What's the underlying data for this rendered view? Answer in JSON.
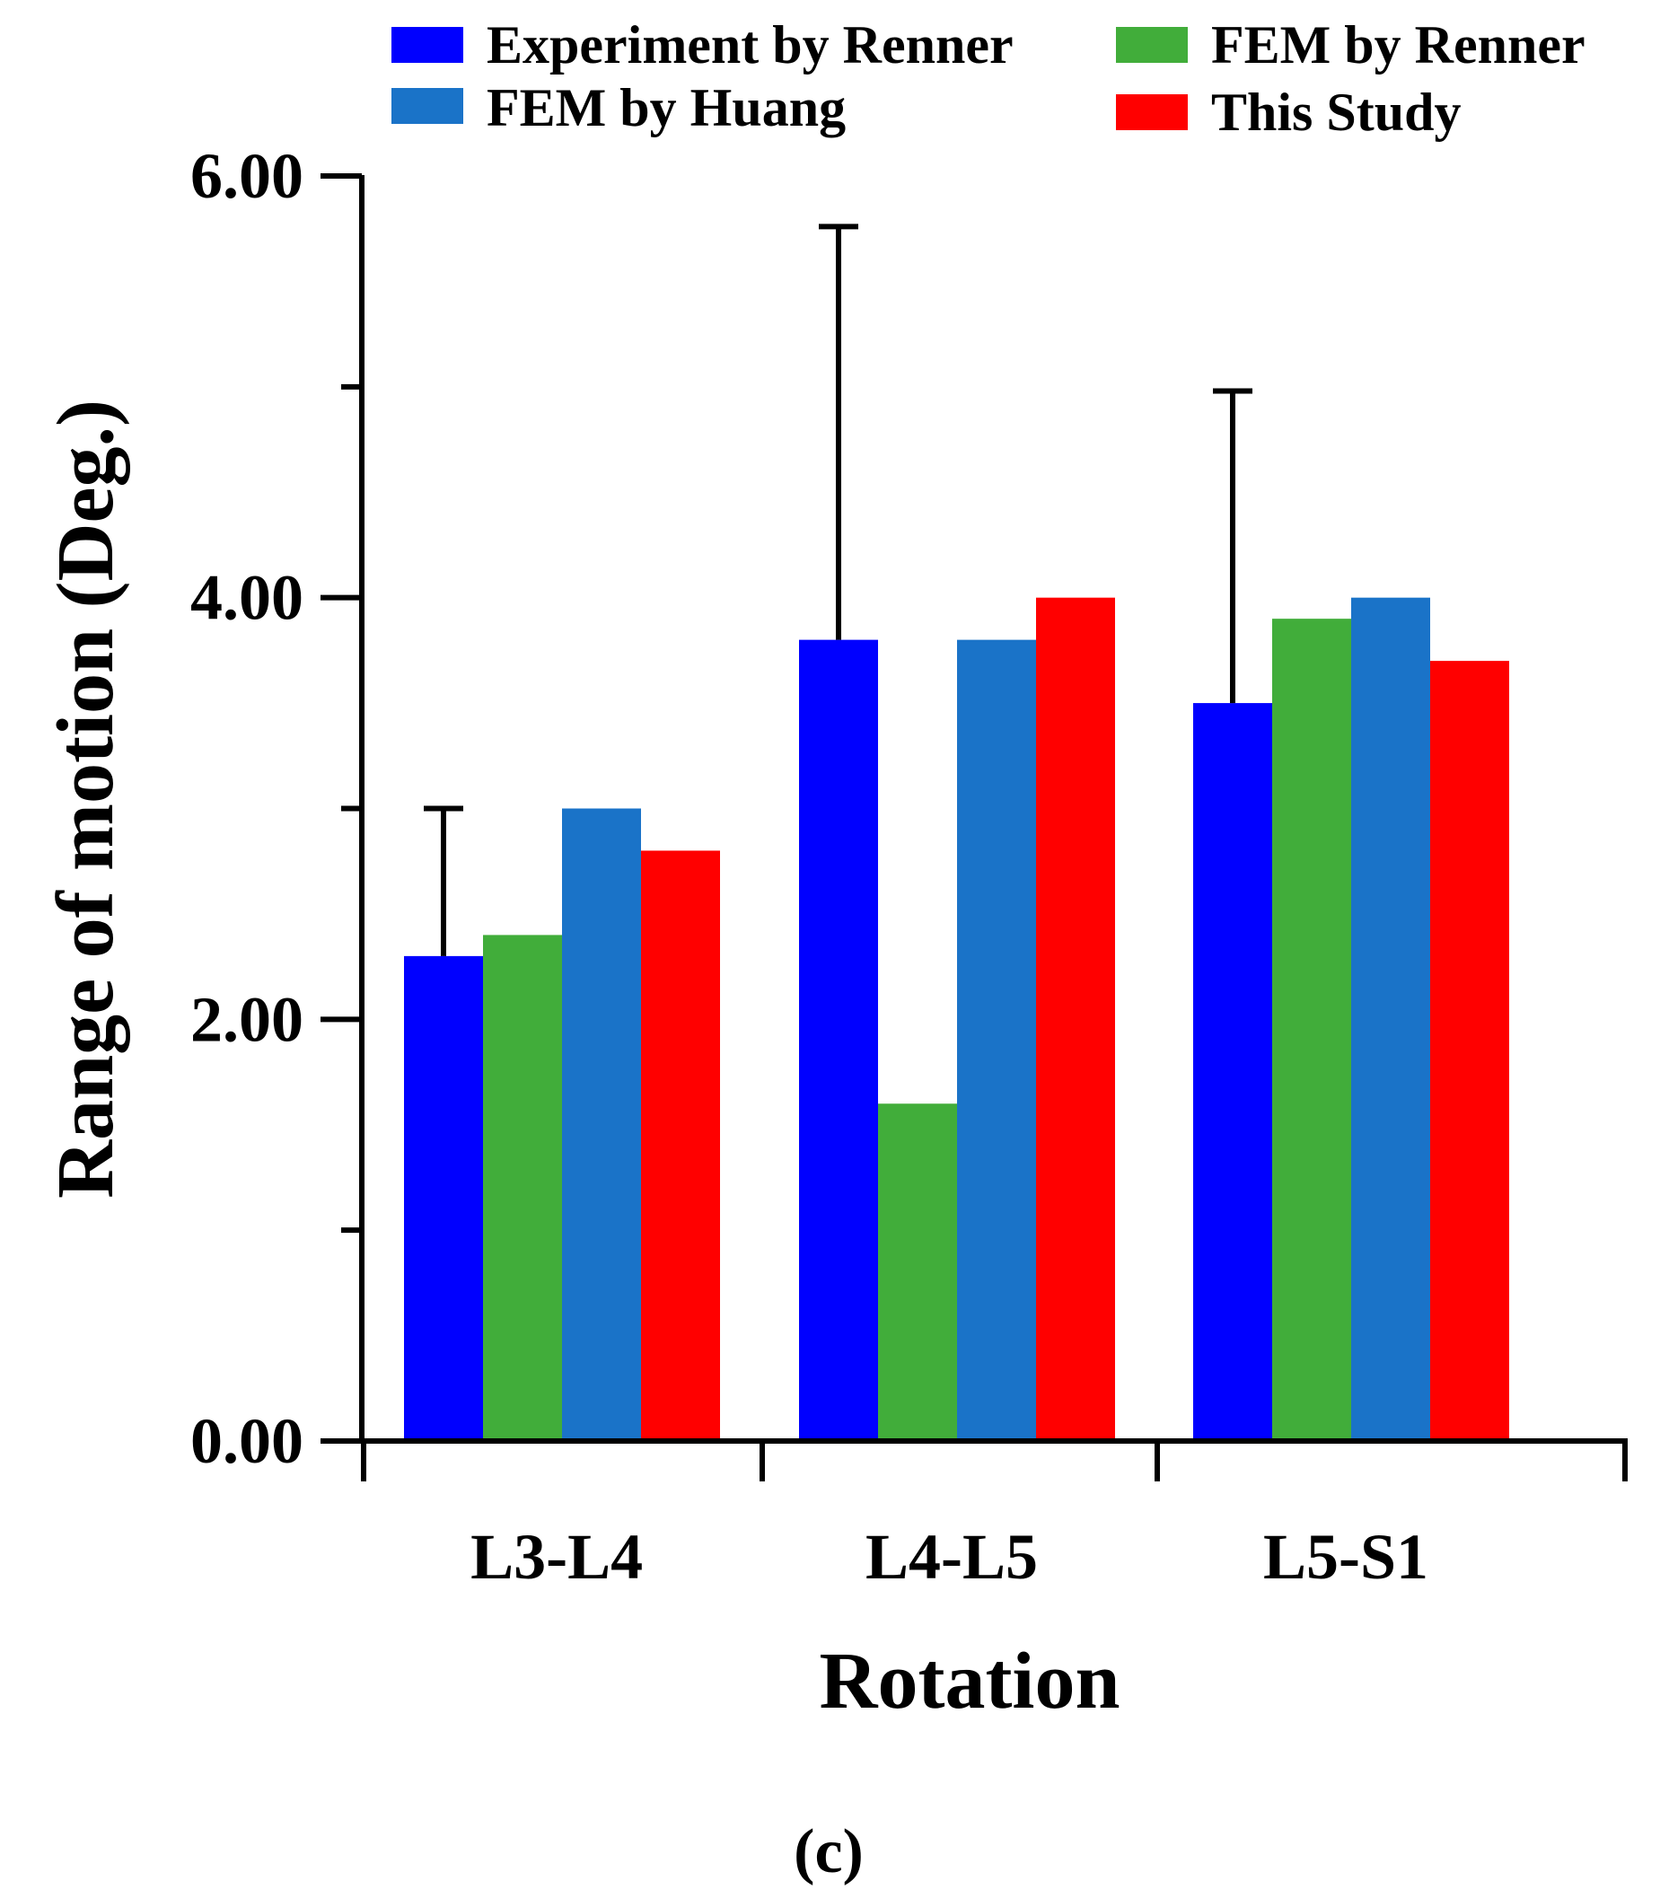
{
  "chart_data": {
    "type": "bar",
    "categories": [
      "L3-L4",
      "L4-L5",
      "L5-S1"
    ],
    "series": [
      {
        "name": "Experiment by Renner",
        "color": "#0000FF",
        "values": [
          2.3,
          3.8,
          3.5
        ],
        "error_upper": [
          3.0,
          5.76,
          4.98
        ]
      },
      {
        "name": "FEM by Renner",
        "color": "#41AD3A",
        "values": [
          2.4,
          1.6,
          3.9
        ]
      },
      {
        "name": "FEM by Huang",
        "color": "#1A73C8",
        "values": [
          3.0,
          3.8,
          4.0
        ]
      },
      {
        "name": "This Study",
        "color": "#FF0000",
        "values": [
          2.8,
          4.0,
          3.7
        ]
      }
    ],
    "xlabel": "Rotation",
    "ylabel": "Range of motion (Deg.)",
    "ylim": [
      0,
      6
    ],
    "yticks": [
      0,
      2,
      4,
      6
    ],
    "ytick_labels": [
      "0.00",
      "2.00",
      "4.00",
      "6.00"
    ],
    "minor_yticks": [
      1,
      3,
      5
    ],
    "legend_position": "top"
  },
  "caption": "(c)"
}
